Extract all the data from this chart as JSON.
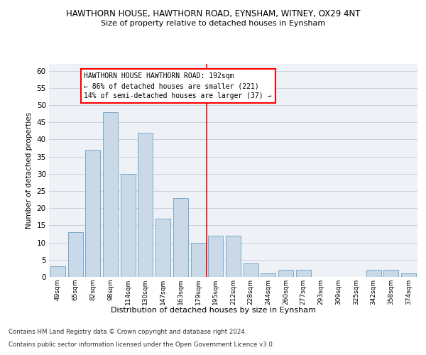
{
  "title": "HAWTHORN HOUSE, HAWTHORN ROAD, EYNSHAM, WITNEY, OX29 4NT",
  "subtitle": "Size of property relative to detached houses in Eynsham",
  "xlabel": "Distribution of detached houses by size in Eynsham",
  "ylabel": "Number of detached properties",
  "bar_values": [
    3,
    13,
    37,
    48,
    30,
    42,
    17,
    23,
    10,
    12,
    12,
    4,
    1,
    2,
    2,
    0,
    0,
    0,
    2,
    2,
    1
  ],
  "bin_labels": [
    "49sqm",
    "65sqm",
    "82sqm",
    "98sqm",
    "114sqm",
    "130sqm",
    "147sqm",
    "163sqm",
    "179sqm",
    "195sqm",
    "212sqm",
    "228sqm",
    "244sqm",
    "260sqm",
    "277sqm",
    "293sqm",
    "309sqm",
    "325sqm",
    "342sqm",
    "358sqm",
    "374sqm"
  ],
  "bar_color": "#c9d9e8",
  "bar_edge_color": "#7aaac8",
  "grid_color": "#c8d0dc",
  "background_color": "#eef2f7",
  "marker_label_line1": "HAWTHORN HOUSE HAWTHORN ROAD: 192sqm",
  "marker_label_line2": "← 86% of detached houses are smaller (221)",
  "marker_label_line3": "14% of semi-detached houses are larger (37) →",
  "marker_color": "red",
  "ylim": [
    0,
    62
  ],
  "yticks": [
    0,
    5,
    10,
    15,
    20,
    25,
    30,
    35,
    40,
    45,
    50,
    55,
    60
  ],
  "footnote1": "Contains HM Land Registry data © Crown copyright and database right 2024.",
  "footnote2": "Contains public sector information licensed under the Open Government Licence v3.0."
}
